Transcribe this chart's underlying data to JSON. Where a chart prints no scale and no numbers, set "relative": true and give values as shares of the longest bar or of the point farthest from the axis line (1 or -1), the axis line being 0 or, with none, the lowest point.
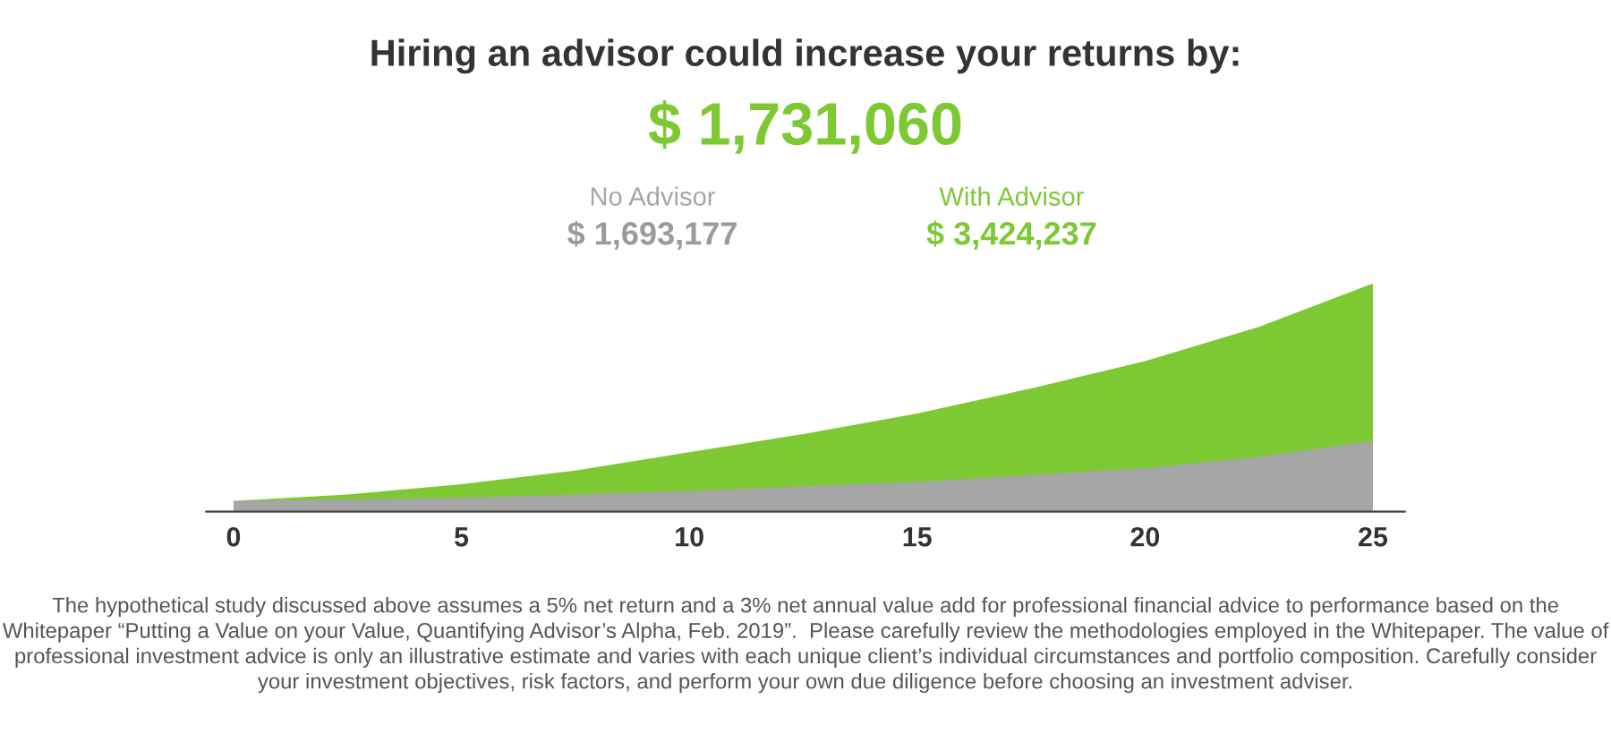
{
  "chart_data": {
    "type": "area",
    "relative": true,
    "title": "Hiring an advisor could increase your returns by:",
    "subtitle": "$ 1,731,060",
    "x": [
      0,
      2.5,
      5,
      7.5,
      10,
      12.5,
      15,
      17.5,
      20,
      22.5,
      25
    ],
    "xlim": [
      -0.6,
      25.7
    ],
    "xticks": [
      0,
      5,
      10,
      15,
      20,
      25
    ],
    "series": [
      {
        "name": "With Advisor",
        "color": "#7dc934",
        "values": [
          0.046,
          0.075,
          0.12,
          0.18,
          0.26,
          0.34,
          0.43,
          0.54,
          0.66,
          0.81,
          1
        ]
      },
      {
        "name": "No Advisor",
        "color": "#a6a6a6",
        "values": [
          0.046,
          0.053,
          0.06,
          0.075,
          0.09,
          0.11,
          0.13,
          0.16,
          0.19,
          0.24,
          0.31
        ]
      }
    ],
    "legend": "top",
    "grid": false,
    "annotations": [
      "$ 1,693,177",
      "$ 3,424,237",
      "The hypothetical study discussed above assumes a 5% net return and a 3% net annual value add for professional financial advice to performance based on the Whitepaper “Putting a Value on your Value, Quantifying Advisor’s Alpha, Feb. 2019”.  Please carefully review the methodologies employed in the Whitepaper. The value of professional investment advice is only an illustrative estimate and varies with each unique client’s individual circumstances and portfolio composition. Carefully consider your investment objectives, risk factors, and perform your own due diligence before choosing an investment adviser."
    ]
  }
}
